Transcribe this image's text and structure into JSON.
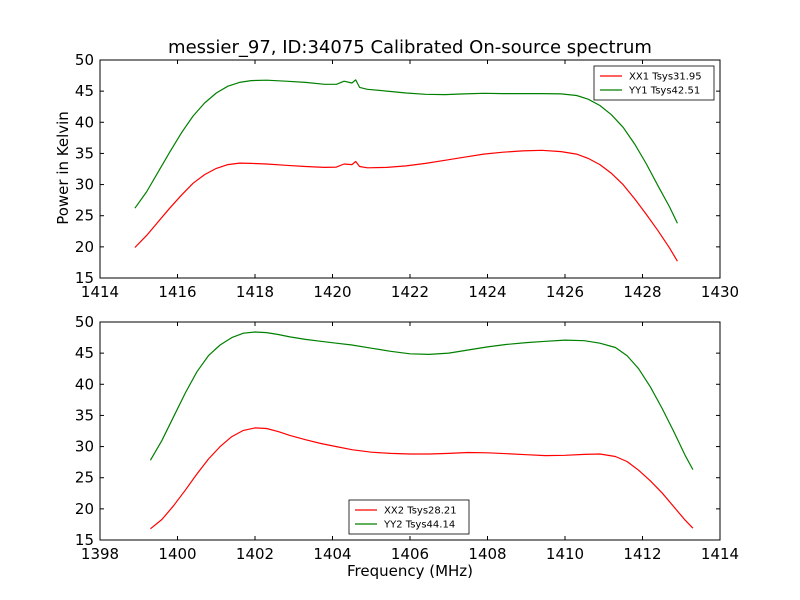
{
  "chart_data": [
    {
      "type": "line",
      "title": "messier_97, ID:34075 Calibrated On-source spectrum",
      "xlabel": "",
      "ylabel": "Power in Kelvin",
      "xlim": [
        1414,
        1430
      ],
      "ylim": [
        15,
        50
      ],
      "x_ticks": [
        1414,
        1416,
        1418,
        1420,
        1422,
        1424,
        1426,
        1428,
        1430
      ],
      "y_ticks": [
        15,
        20,
        25,
        30,
        35,
        40,
        45,
        50
      ],
      "grid": false,
      "legend_position": "top-right",
      "series": [
        {
          "name": "XX1 Tsys31.95",
          "color": "#ff0000",
          "points": [
            [
              1414.9,
              19.9
            ],
            [
              1415.2,
              21.8
            ],
            [
              1415.5,
              24.0
            ],
            [
              1415.8,
              26.2
            ],
            [
              1416.1,
              28.3
            ],
            [
              1416.4,
              30.2
            ],
            [
              1416.7,
              31.6
            ],
            [
              1417.0,
              32.6
            ],
            [
              1417.3,
              33.2
            ],
            [
              1417.6,
              33.45
            ],
            [
              1417.9,
              33.4
            ],
            [
              1418.3,
              33.3
            ],
            [
              1418.8,
              33.1
            ],
            [
              1419.3,
              32.9
            ],
            [
              1419.8,
              32.75
            ],
            [
              1420.1,
              32.8
            ],
            [
              1420.3,
              33.3
            ],
            [
              1420.5,
              33.2
            ],
            [
              1420.6,
              33.7
            ],
            [
              1420.7,
              32.9
            ],
            [
              1420.9,
              32.7
            ],
            [
              1421.4,
              32.75
            ],
            [
              1421.9,
              33.0
            ],
            [
              1422.4,
              33.4
            ],
            [
              1422.9,
              33.9
            ],
            [
              1423.4,
              34.4
            ],
            [
              1423.9,
              34.9
            ],
            [
              1424.4,
              35.2
            ],
            [
              1424.9,
              35.4
            ],
            [
              1425.4,
              35.5
            ],
            [
              1425.9,
              35.3
            ],
            [
              1426.3,
              34.9
            ],
            [
              1426.6,
              34.2
            ],
            [
              1426.9,
              33.2
            ],
            [
              1427.2,
              31.8
            ],
            [
              1427.5,
              30.0
            ],
            [
              1427.8,
              27.7
            ],
            [
              1428.1,
              25.2
            ],
            [
              1428.4,
              22.6
            ],
            [
              1428.7,
              19.8
            ],
            [
              1428.9,
              17.7
            ]
          ]
        },
        {
          "name": "YY1 Tsys42.51",
          "color": "#008000",
          "points": [
            [
              1414.9,
              26.2
            ],
            [
              1415.2,
              28.8
            ],
            [
              1415.5,
              32.0
            ],
            [
              1415.8,
              35.2
            ],
            [
              1416.1,
              38.3
            ],
            [
              1416.4,
              41.0
            ],
            [
              1416.7,
              43.1
            ],
            [
              1417.0,
              44.7
            ],
            [
              1417.3,
              45.8
            ],
            [
              1417.6,
              46.4
            ],
            [
              1417.9,
              46.7
            ],
            [
              1418.3,
              46.75
            ],
            [
              1418.8,
              46.6
            ],
            [
              1419.3,
              46.4
            ],
            [
              1419.8,
              46.1
            ],
            [
              1420.1,
              46.1
            ],
            [
              1420.3,
              46.6
            ],
            [
              1420.5,
              46.3
            ],
            [
              1420.6,
              46.8
            ],
            [
              1420.7,
              45.6
            ],
            [
              1420.9,
              45.3
            ],
            [
              1421.4,
              45.0
            ],
            [
              1421.9,
              44.7
            ],
            [
              1422.4,
              44.5
            ],
            [
              1422.9,
              44.45
            ],
            [
              1423.4,
              44.55
            ],
            [
              1423.9,
              44.65
            ],
            [
              1424.4,
              44.6
            ],
            [
              1424.9,
              44.6
            ],
            [
              1425.4,
              44.6
            ],
            [
              1425.9,
              44.55
            ],
            [
              1426.3,
              44.3
            ],
            [
              1426.6,
              43.7
            ],
            [
              1426.9,
              42.7
            ],
            [
              1427.2,
              41.2
            ],
            [
              1427.5,
              39.2
            ],
            [
              1427.8,
              36.5
            ],
            [
              1428.1,
              33.3
            ],
            [
              1428.4,
              29.8
            ],
            [
              1428.7,
              26.4
            ],
            [
              1428.9,
              23.8
            ]
          ]
        }
      ]
    },
    {
      "type": "line",
      "title": "",
      "xlabel": "Frequency (MHz)",
      "ylabel": "",
      "xlim": [
        1398,
        1414
      ],
      "ylim": [
        15,
        50
      ],
      "x_ticks": [
        1398,
        1400,
        1402,
        1404,
        1406,
        1408,
        1410,
        1412,
        1414
      ],
      "y_ticks": [
        15,
        20,
        25,
        30,
        35,
        40,
        45,
        50
      ],
      "grid": false,
      "legend_position": "bottom-center",
      "series": [
        {
          "name": "XX2 Tsys28.21",
          "color": "#ff0000",
          "points": [
            [
              1399.3,
              16.8
            ],
            [
              1399.6,
              18.3
            ],
            [
              1399.9,
              20.5
            ],
            [
              1400.2,
              23.0
            ],
            [
              1400.5,
              25.6
            ],
            [
              1400.8,
              28.0
            ],
            [
              1401.1,
              30.0
            ],
            [
              1401.4,
              31.6
            ],
            [
              1401.7,
              32.6
            ],
            [
              1402.0,
              33.0
            ],
            [
              1402.3,
              32.9
            ],
            [
              1402.6,
              32.4
            ],
            [
              1402.9,
              31.8
            ],
            [
              1403.3,
              31.1
            ],
            [
              1403.7,
              30.5
            ],
            [
              1404.1,
              30.0
            ],
            [
              1404.5,
              29.5
            ],
            [
              1405.0,
              29.1
            ],
            [
              1405.5,
              28.9
            ],
            [
              1406.0,
              28.8
            ],
            [
              1406.5,
              28.8
            ],
            [
              1407.0,
              28.9
            ],
            [
              1407.5,
              29.05
            ],
            [
              1408.0,
              29.0
            ],
            [
              1408.5,
              28.85
            ],
            [
              1409.0,
              28.7
            ],
            [
              1409.5,
              28.55
            ],
            [
              1410.0,
              28.6
            ],
            [
              1410.5,
              28.75
            ],
            [
              1410.9,
              28.8
            ],
            [
              1411.3,
              28.4
            ],
            [
              1411.6,
              27.6
            ],
            [
              1411.9,
              26.2
            ],
            [
              1412.2,
              24.5
            ],
            [
              1412.5,
              22.6
            ],
            [
              1412.8,
              20.4
            ],
            [
              1413.1,
              18.2
            ],
            [
              1413.3,
              16.9
            ]
          ]
        },
        {
          "name": "YY2 Tsys44.14",
          "color": "#008000",
          "points": [
            [
              1399.3,
              27.8
            ],
            [
              1399.6,
              31.0
            ],
            [
              1399.9,
              34.8
            ],
            [
              1400.2,
              38.6
            ],
            [
              1400.5,
              42.0
            ],
            [
              1400.8,
              44.6
            ],
            [
              1401.1,
              46.3
            ],
            [
              1401.4,
              47.5
            ],
            [
              1401.7,
              48.2
            ],
            [
              1402.0,
              48.4
            ],
            [
              1402.3,
              48.3
            ],
            [
              1402.6,
              48.0
            ],
            [
              1402.9,
              47.6
            ],
            [
              1403.3,
              47.2
            ],
            [
              1403.7,
              46.9
            ],
            [
              1404.1,
              46.6
            ],
            [
              1404.5,
              46.3
            ],
            [
              1405.0,
              45.8
            ],
            [
              1405.5,
              45.3
            ],
            [
              1406.0,
              44.9
            ],
            [
              1406.5,
              44.8
            ],
            [
              1407.0,
              45.0
            ],
            [
              1407.5,
              45.5
            ],
            [
              1408.0,
              46.0
            ],
            [
              1408.5,
              46.4
            ],
            [
              1409.0,
              46.7
            ],
            [
              1409.5,
              46.9
            ],
            [
              1410.0,
              47.1
            ],
            [
              1410.5,
              47.0
            ],
            [
              1410.9,
              46.6
            ],
            [
              1411.3,
              45.9
            ],
            [
              1411.6,
              44.6
            ],
            [
              1411.9,
              42.5
            ],
            [
              1412.2,
              39.6
            ],
            [
              1412.5,
              36.2
            ],
            [
              1412.8,
              32.5
            ],
            [
              1413.1,
              28.6
            ],
            [
              1413.3,
              26.3
            ]
          ]
        }
      ]
    }
  ]
}
